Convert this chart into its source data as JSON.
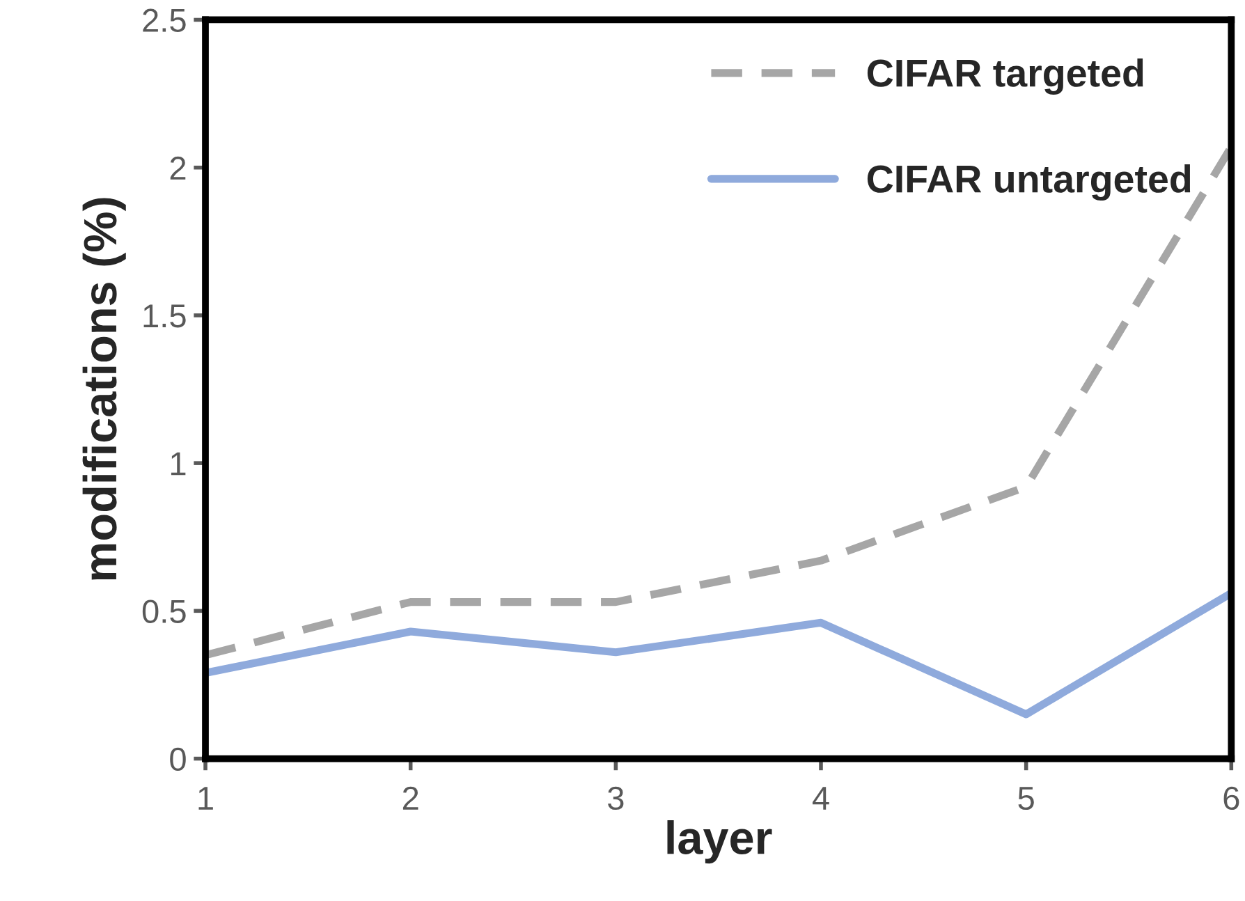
{
  "chart_data": {
    "type": "line",
    "xlabel": "layer",
    "ylabel": "modifications (%)",
    "x": [
      1,
      2,
      3,
      4,
      5,
      6
    ],
    "series": [
      {
        "name": "CIFAR targeted",
        "color": "#a6a6a6",
        "line_style": "dashed",
        "values": [
          0.35,
          0.53,
          0.53,
          0.67,
          0.92,
          2.07
        ]
      },
      {
        "name": "CIFAR untargeted",
        "color": "#8faadc",
        "line_style": "solid",
        "values": [
          0.29,
          0.43,
          0.36,
          0.46,
          0.15,
          0.56
        ]
      }
    ],
    "xlim": [
      1,
      6
    ],
    "xticks": [
      1,
      2,
      3,
      4,
      5,
      6
    ],
    "ylim": [
      0,
      2.5
    ],
    "yticks": [
      0,
      0.5,
      1,
      1.5,
      2,
      2.5
    ],
    "grid": false,
    "legend": "top right",
    "marker": "none"
  }
}
